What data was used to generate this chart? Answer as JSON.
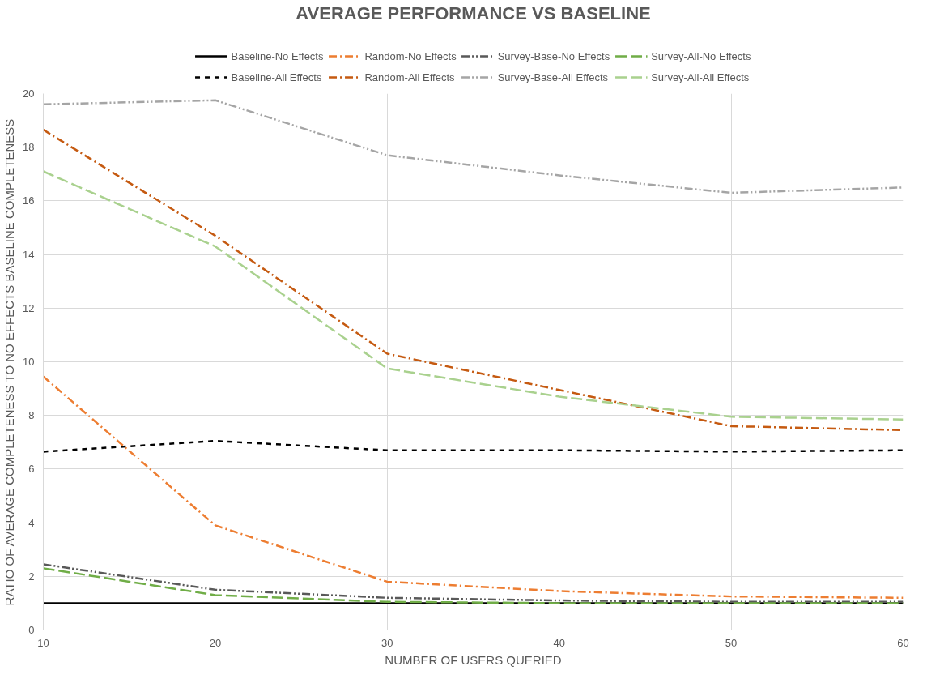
{
  "chart_data": {
    "type": "line",
    "title": "AVERAGE PERFORMANCE VS BASELINE",
    "xlabel": "NUMBER OF USERS QUERIED",
    "ylabel": "RATIO OF AVERAGE COMPLETENESS TO NO EFFECTS BASELINE COMPLETENESS",
    "x": [
      10,
      20,
      30,
      40,
      50,
      60
    ],
    "series": [
      {
        "name": "Baseline-No Effects",
        "color": "#000000",
        "line_style": "solid",
        "values": [
          1,
          1,
          1,
          1,
          1,
          1
        ]
      },
      {
        "name": "Random-No Effects",
        "color": "#ed7d31",
        "line_style": "dashdot",
        "values": [
          9.45,
          3.9,
          1.8,
          1.45,
          1.25,
          1.2
        ]
      },
      {
        "name": "Survey-Base-No Effects",
        "color": "#595959",
        "line_style": "dashdotdot",
        "values": [
          2.45,
          1.5,
          1.2,
          1.1,
          1.05,
          1.05
        ]
      },
      {
        "name": "Survey-All-No Effects",
        "color": "#70ad47",
        "line_style": "longdash",
        "values": [
          2.3,
          1.3,
          1.05,
          1.0,
          1.0,
          1.0
        ]
      },
      {
        "name": "Baseline-All Effects",
        "color": "#000000",
        "line_style": "dashed",
        "values": [
          6.65,
          7.05,
          6.7,
          6.7,
          6.65,
          6.7
        ]
      },
      {
        "name": "Random-All Effects",
        "color": "#c55a11",
        "line_style": "dashdot",
        "values": [
          18.65,
          14.7,
          10.3,
          8.95,
          7.6,
          7.45
        ]
      },
      {
        "name": "Survey-Base-All Effects",
        "color": "#a5a5a5",
        "line_style": "dashdotdot",
        "values": [
          19.6,
          19.75,
          17.7,
          16.95,
          16.3,
          16.5
        ]
      },
      {
        "name": "Survey-All-All Effects",
        "color": "#a9d18e",
        "line_style": "longdash",
        "values": [
          17.1,
          14.3,
          9.75,
          8.7,
          7.95,
          7.85
        ]
      }
    ],
    "xlim": [
      10,
      60
    ],
    "xticks": [
      10,
      20,
      30,
      40,
      50,
      60
    ],
    "ylim": [
      0,
      20
    ],
    "yticks": [
      0,
      2,
      4,
      6,
      8,
      10,
      12,
      14,
      16,
      18,
      20
    ],
    "grid": true,
    "legend": "top",
    "marker": "none"
  }
}
